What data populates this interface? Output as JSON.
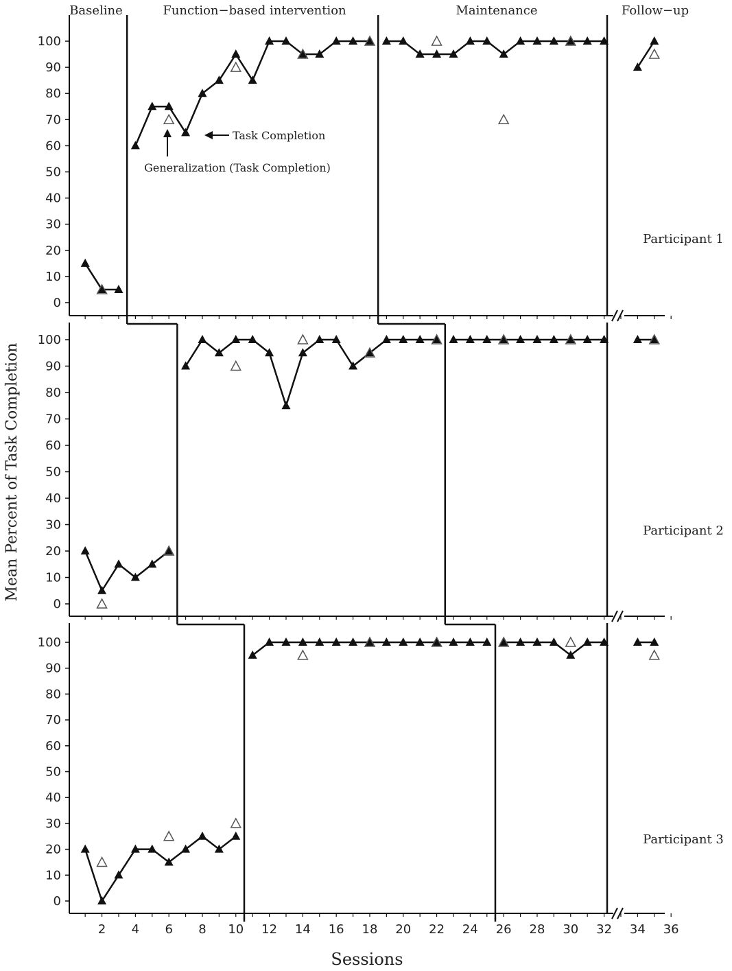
{
  "chart_data": {
    "type": "line",
    "ylabel": "Mean Percent of Task Completion",
    "xlabel": "Sessions",
    "ylim": [
      0,
      100
    ],
    "yticks": [
      "0",
      "10",
      "20",
      "30",
      "40",
      "50",
      "60",
      "70",
      "80",
      "90",
      "100"
    ],
    "xticks": [
      "2",
      "4",
      "6",
      "8",
      "10",
      "12",
      "14",
      "16",
      "18",
      "20",
      "22",
      "24",
      "26",
      "28",
      "30",
      "32",
      "34",
      "36"
    ],
    "phases": [
      "Baseline",
      "Function−based intervention",
      "Maintenance",
      "Follow−up"
    ],
    "annotations": {
      "task": "Task Completion",
      "generalization": "Generalization (Task Completion)"
    },
    "panels": [
      {
        "label": "Participant 1",
        "phase_change_after": [
          3,
          18
        ],
        "task_segments": [
          [
            [
              1,
              15
            ],
            [
              2,
              5
            ],
            [
              3,
              5
            ]
          ],
          [
            [
              4,
              60
            ],
            [
              5,
              75
            ],
            [
              6,
              75
            ],
            [
              7,
              65
            ],
            [
              8,
              80
            ],
            [
              9,
              85
            ],
            [
              10,
              95
            ],
            [
              11,
              85
            ],
            [
              12,
              100
            ],
            [
              13,
              100
            ],
            [
              14,
              95
            ],
            [
              15,
              95
            ],
            [
              16,
              100
            ],
            [
              17,
              100
            ],
            [
              18,
              100
            ]
          ],
          [
            [
              19,
              100
            ],
            [
              20,
              100
            ],
            [
              21,
              95
            ],
            [
              22,
              95
            ],
            [
              23,
              95
            ],
            [
              24,
              100
            ],
            [
              25,
              100
            ],
            [
              26,
              95
            ],
            [
              27,
              100
            ],
            [
              28,
              100
            ],
            [
              29,
              100
            ],
            [
              30,
              100
            ],
            [
              31,
              100
            ],
            [
              32,
              100
            ]
          ],
          [
            [
              34,
              90
            ],
            [
              35,
              100
            ]
          ]
        ],
        "generalization": [
          [
            2,
            5
          ],
          [
            6,
            70
          ],
          [
            10,
            90
          ],
          [
            14,
            95
          ],
          [
            18,
            100
          ],
          [
            22,
            100
          ],
          [
            26,
            70
          ],
          [
            30,
            100
          ],
          [
            35,
            95
          ]
        ]
      },
      {
        "label": "Participant 2",
        "phase_change_after": [
          6,
          22
        ],
        "task_segments": [
          [
            [
              1,
              20
            ],
            [
              2,
              5
            ],
            [
              3,
              15
            ],
            [
              4,
              10
            ],
            [
              5,
              15
            ],
            [
              6,
              20
            ]
          ],
          [
            [
              7,
              90
            ],
            [
              8,
              100
            ],
            [
              9,
              95
            ],
            [
              10,
              100
            ],
            [
              11,
              100
            ],
            [
              12,
              95
            ],
            [
              13,
              75
            ],
            [
              14,
              95
            ],
            [
              15,
              100
            ],
            [
              16,
              100
            ],
            [
              17,
              90
            ],
            [
              18,
              95
            ],
            [
              19,
              100
            ],
            [
              20,
              100
            ],
            [
              21,
              100
            ],
            [
              22,
              100
            ]
          ],
          [
            [
              23,
              100
            ],
            [
              24,
              100
            ],
            [
              25,
              100
            ],
            [
              26,
              100
            ],
            [
              27,
              100
            ],
            [
              28,
              100
            ],
            [
              29,
              100
            ],
            [
              30,
              100
            ],
            [
              31,
              100
            ],
            [
              32,
              100
            ]
          ],
          [
            [
              34,
              100
            ],
            [
              35,
              100
            ]
          ]
        ],
        "generalization": [
          [
            2,
            0
          ],
          [
            6,
            20
          ],
          [
            10,
            90
          ],
          [
            14,
            100
          ],
          [
            18,
            95
          ],
          [
            22,
            100
          ],
          [
            26,
            100
          ],
          [
            30,
            100
          ],
          [
            35,
            100
          ]
        ]
      },
      {
        "label": "Participant 3",
        "phase_change_after": [
          10,
          25
        ],
        "task_segments": [
          [
            [
              1,
              20
            ],
            [
              2,
              0
            ],
            [
              3,
              10
            ],
            [
              4,
              20
            ],
            [
              5,
              20
            ],
            [
              6,
              15
            ],
            [
              7,
              20
            ],
            [
              8,
              25
            ],
            [
              9,
              20
            ],
            [
              10,
              25
            ]
          ],
          [
            [
              11,
              95
            ],
            [
              12,
              100
            ],
            [
              13,
              100
            ],
            [
              14,
              100
            ],
            [
              15,
              100
            ],
            [
              16,
              100
            ],
            [
              17,
              100
            ],
            [
              18,
              100
            ],
            [
              19,
              100
            ],
            [
              20,
              100
            ],
            [
              21,
              100
            ],
            [
              22,
              100
            ],
            [
              23,
              100
            ],
            [
              24,
              100
            ],
            [
              25,
              100
            ]
          ],
          [
            [
              26,
              100
            ],
            [
              27,
              100
            ],
            [
              28,
              100
            ],
            [
              29,
              100
            ],
            [
              30,
              95
            ],
            [
              31,
              100
            ],
            [
              32,
              100
            ]
          ],
          [
            [
              34,
              100
            ],
            [
              35,
              100
            ]
          ]
        ],
        "generalization": [
          [
            2,
            15
          ],
          [
            6,
            25
          ],
          [
            10,
            30
          ],
          [
            14,
            95
          ],
          [
            18,
            100
          ],
          [
            22,
            100
          ],
          [
            26,
            100
          ],
          [
            30,
            100
          ],
          [
            35,
            95
          ]
        ]
      }
    ]
  }
}
